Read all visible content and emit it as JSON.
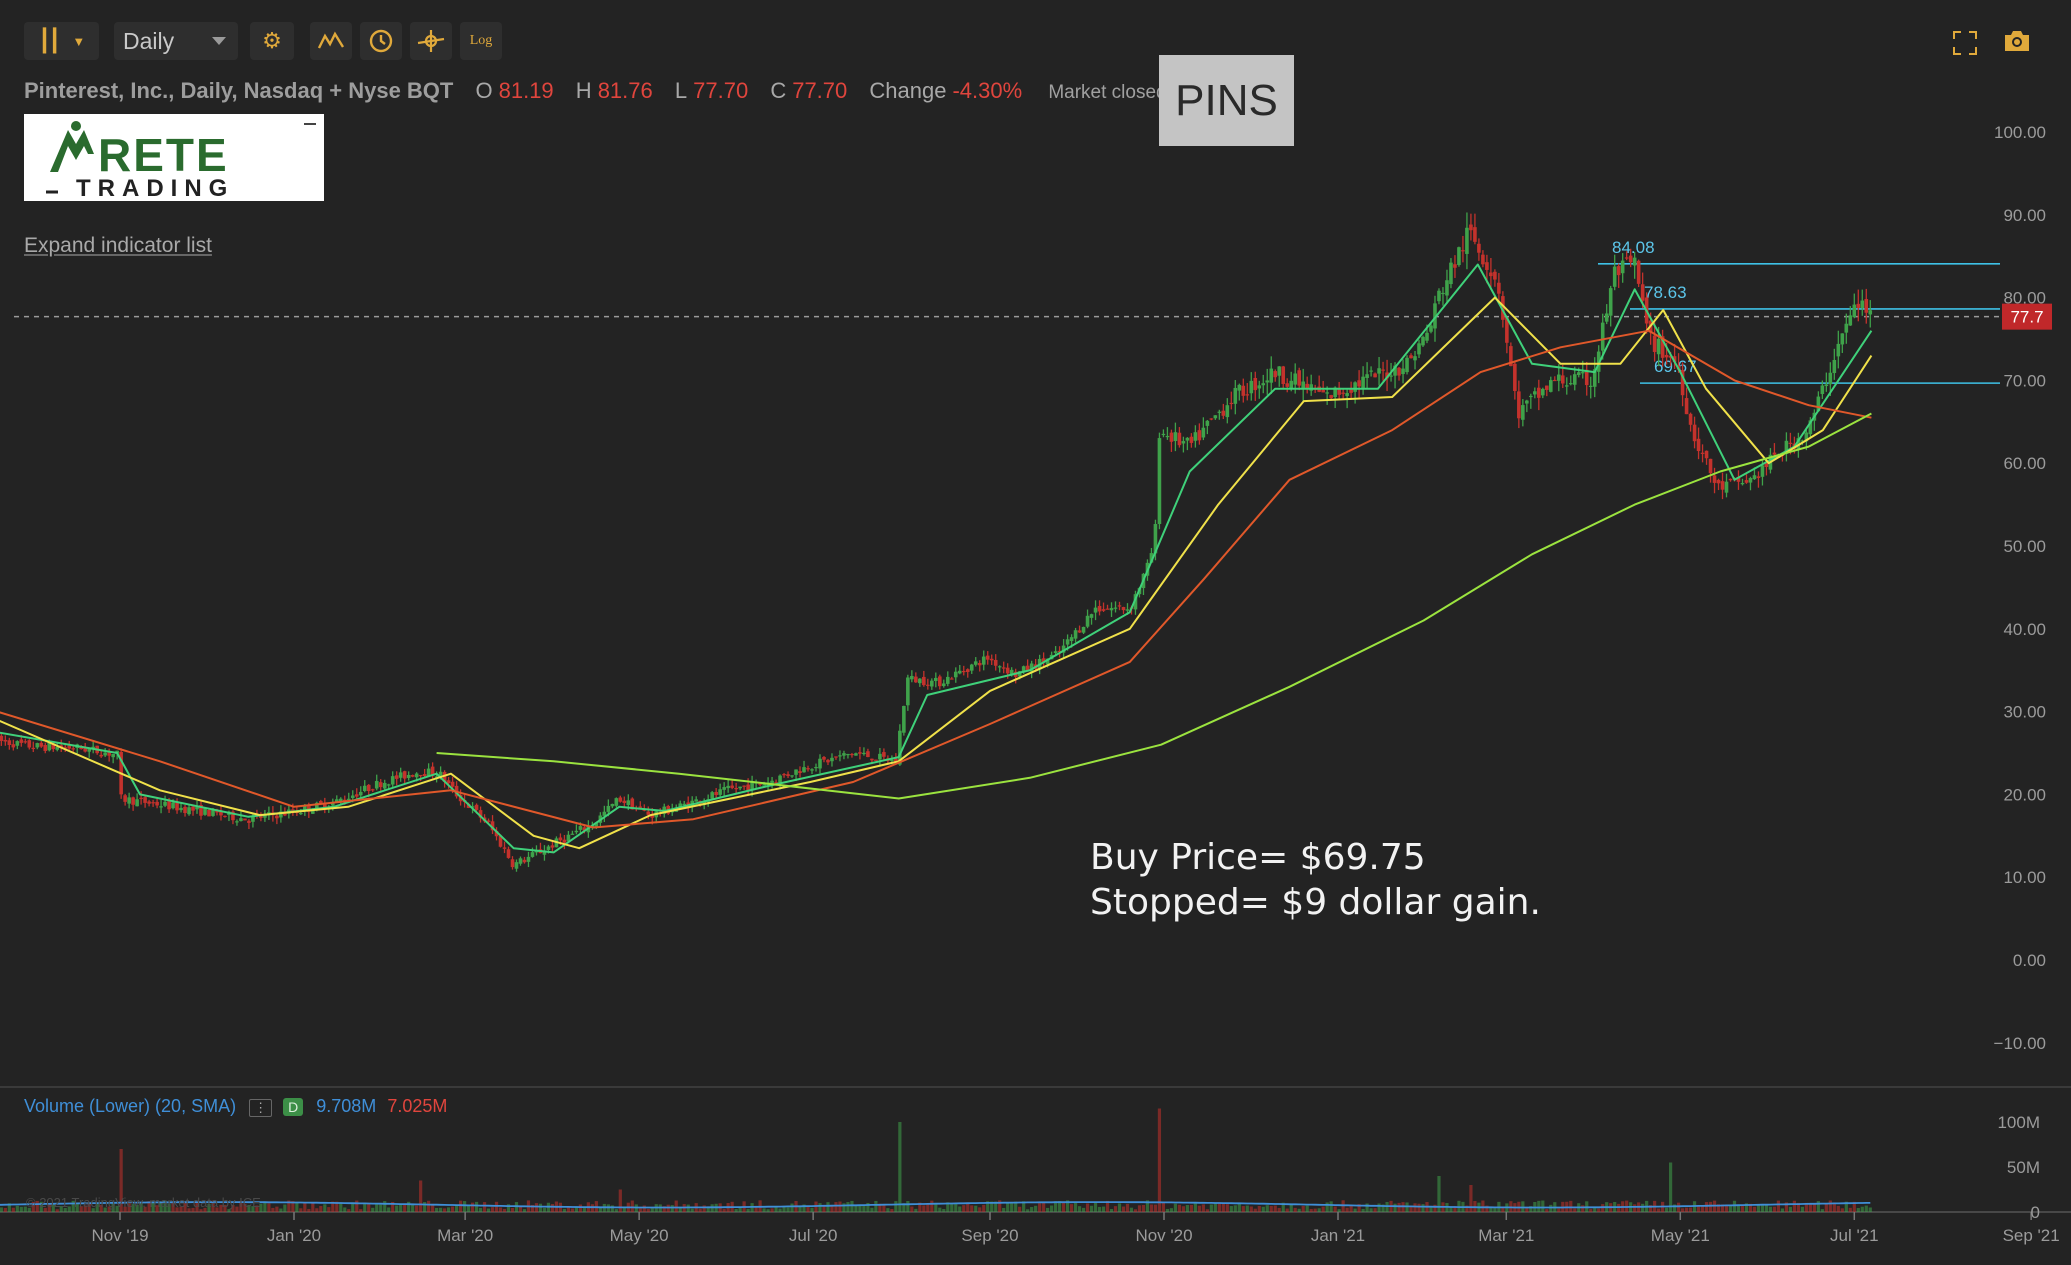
{
  "toolbar": {
    "interval": "Daily",
    "log_label": "Log"
  },
  "header": {
    "company": "Pinterest, Inc., Daily, Nasdaq + Nyse BQT",
    "open_label": "O",
    "open": "81.19",
    "high_label": "H",
    "high": "81.76",
    "low_label": "L",
    "low": "77.70",
    "close_label": "C",
    "close": "77.70",
    "change_label": "Change",
    "change": "-4.30%",
    "market_status": "Market closed"
  },
  "symbol": "PINS",
  "logo": {
    "line1": "RETE",
    "line2": "TRADING"
  },
  "expand_indicator": "Expand indicator list",
  "annotation": {
    "line1": "Buy Price= $69.75",
    "line2": "Stopped= $9 dollar gain."
  },
  "volume_legend": {
    "title": "Volume (Lower) (20, SMA)",
    "menu": "⋮",
    "badge": "D",
    "value_sma": "9.708M",
    "value_vol": "7.025M"
  },
  "copyright": "© 2021 TradingView, market data by ICE",
  "colors": {
    "background": "#232323",
    "up": "#3fa24a",
    "down": "#c4322c",
    "ma_fast": "#3fd17a",
    "ma_mid": "#f0e14a",
    "ma_slow": "#e0582a",
    "ma_long": "#9be33f",
    "level_line": "#3ec1e6",
    "vol_sma": "#3f8fd8",
    "price_tag": "#c0282a"
  },
  "chart_data": {
    "type": "candlestick",
    "title": "",
    "y_axis": {
      "ticks": [
        "100.00",
        "90.00",
        "80.00",
        "70.00",
        "60.00",
        "50.00",
        "40.00",
        "30.00",
        "20.00",
        "10.00",
        "0.00",
        "−10.00"
      ],
      "range": [
        -10,
        100
      ]
    },
    "x_axis": {
      "ticks": [
        "Nov '19",
        "Jan '20",
        "Mar '20",
        "May '20",
        "Jul '20",
        "Sep '20",
        "Nov '20",
        "Jan '21",
        "Mar '21",
        "May '21",
        "Jul '21",
        "Sep '21"
      ]
    },
    "last_price": 77.7,
    "last_price_label": "77.7",
    "levels": [
      {
        "value": 84.08,
        "label": "84.08"
      },
      {
        "value": 78.63,
        "label": "78.63"
      },
      {
        "value": 69.67,
        "label": "69.67"
      }
    ],
    "price_anchors": [
      [
        "2019-09-19",
        26.5
      ],
      [
        "2019-10-01",
        25.8
      ],
      [
        "2019-10-18",
        25.6
      ],
      [
        "2019-10-31",
        24.8
      ],
      [
        "2019-11-01",
        19.5
      ],
      [
        "2019-11-15",
        18.8
      ],
      [
        "2019-12-02",
        17.8
      ],
      [
        "2019-12-16",
        17.0
      ],
      [
        "2020-01-02",
        18.0
      ],
      [
        "2020-01-15",
        19.0
      ],
      [
        "2020-02-01",
        21.5
      ],
      [
        "2020-02-14",
        22.8
      ],
      [
        "2020-02-21",
        22.5
      ],
      [
        "2020-02-27",
        20.0
      ],
      [
        "2020-03-09",
        16.5
      ],
      [
        "2020-03-18",
        11.5
      ],
      [
        "2020-03-24",
        12.5
      ],
      [
        "2020-04-01",
        14.0
      ],
      [
        "2020-04-15",
        16.5
      ],
      [
        "2020-04-24",
        19.5
      ],
      [
        "2020-05-05",
        17.5
      ],
      [
        "2020-05-15",
        18.5
      ],
      [
        "2020-06-01",
        20.5
      ],
      [
        "2020-06-15",
        21.5
      ],
      [
        "2020-06-30",
        23.5
      ],
      [
        "2020-07-15",
        25.0
      ],
      [
        "2020-07-30",
        24.0
      ],
      [
        "2020-08-03",
        34.0
      ],
      [
        "2020-08-14",
        33.5
      ],
      [
        "2020-08-31",
        36.5
      ],
      [
        "2020-09-10",
        34.5
      ],
      [
        "2020-09-25",
        37.0
      ],
      [
        "2020-10-08",
        42.5
      ],
      [
        "2020-10-20",
        42.5
      ],
      [
        "2020-10-27",
        48.0
      ],
      [
        "2020-10-29",
        52.0
      ],
      [
        "2020-10-30",
        64.0
      ],
      [
        "2020-11-10",
        62.0
      ],
      [
        "2020-11-25",
        68.0
      ],
      [
        "2020-12-10",
        71.0
      ],
      [
        "2020-12-28",
        68.0
      ],
      [
        "2021-01-10",
        70.0
      ],
      [
        "2021-01-25",
        72.0
      ],
      [
        "2021-02-02",
        76.0
      ],
      [
        "2021-02-05",
        80.0
      ],
      [
        "2021-02-16",
        88.0
      ],
      [
        "2021-02-26",
        82.0
      ],
      [
        "2021-03-05",
        66.0
      ],
      [
        "2021-03-18",
        70.0
      ],
      [
        "2021-03-31",
        70.0
      ],
      [
        "2021-04-08",
        83.0
      ],
      [
        "2021-04-15",
        84.0
      ],
      [
        "2021-04-20",
        75.0
      ],
      [
        "2021-04-30",
        72.0
      ],
      [
        "2021-05-05",
        64.0
      ],
      [
        "2021-05-14",
        57.0
      ],
      [
        "2021-05-26",
        58.0
      ],
      [
        "2021-06-04",
        61.0
      ],
      [
        "2021-06-15",
        64.0
      ],
      [
        "2021-06-25",
        74.0
      ],
      [
        "2021-07-02",
        79.5
      ],
      [
        "2021-07-07",
        77.7
      ]
    ],
    "ma_anchors": {
      "fast": [
        [
          "2019-09-19",
          27.5
        ],
        [
          "2019-10-31",
          25.0
        ],
        [
          "2019-11-08",
          20.0
        ],
        [
          "2019-12-16",
          17.3
        ],
        [
          "2020-01-15",
          18.5
        ],
        [
          "2020-02-20",
          22.5
        ],
        [
          "2020-03-18",
          13.5
        ],
        [
          "2020-04-01",
          13.0
        ],
        [
          "2020-04-24",
          18.5
        ],
        [
          "2020-05-10",
          18.0
        ],
        [
          "2020-06-15",
          21.0
        ],
        [
          "2020-07-31",
          24.5
        ],
        [
          "2020-08-10",
          32.0
        ],
        [
          "2020-09-15",
          35.0
        ],
        [
          "2020-10-20",
          42.0
        ],
        [
          "2020-11-10",
          59.0
        ],
        [
          "2020-12-10",
          69.0
        ],
        [
          "2021-01-15",
          69.0
        ],
        [
          "2021-02-19",
          84.0
        ],
        [
          "2021-03-10",
          72.0
        ],
        [
          "2021-04-01",
          71.0
        ],
        [
          "2021-04-15",
          81.0
        ],
        [
          "2021-05-01",
          71.0
        ],
        [
          "2021-05-20",
          58.0
        ],
        [
          "2021-06-10",
          62.0
        ],
        [
          "2021-07-07",
          76.0
        ]
      ],
      "mid": [
        [
          "2019-09-19",
          29.0
        ],
        [
          "2019-11-15",
          20.5
        ],
        [
          "2019-12-20",
          17.5
        ],
        [
          "2020-01-20",
          18.5
        ],
        [
          "2020-02-25",
          22.5
        ],
        [
          "2020-03-25",
          15.0
        ],
        [
          "2020-04-10",
          13.5
        ],
        [
          "2020-05-05",
          17.5
        ],
        [
          "2020-06-30",
          21.5
        ],
        [
          "2020-07-31",
          24.0
        ],
        [
          "2020-09-01",
          32.5
        ],
        [
          "2020-10-20",
          40.0
        ],
        [
          "2020-11-20",
          55.0
        ],
        [
          "2020-12-20",
          67.5
        ],
        [
          "2021-01-20",
          68.0
        ],
        [
          "2021-02-25",
          80.0
        ],
        [
          "2021-03-20",
          72.0
        ],
        [
          "2021-04-10",
          72.0
        ],
        [
          "2021-04-25",
          78.5
        ],
        [
          "2021-05-10",
          69.0
        ],
        [
          "2021-06-01",
          60.0
        ],
        [
          "2021-06-20",
          64.0
        ],
        [
          "2021-07-07",
          73.0
        ]
      ],
      "slow": [
        [
          "2019-09-19",
          30.0
        ],
        [
          "2019-11-15",
          24.0
        ],
        [
          "2020-01-01",
          18.5
        ],
        [
          "2020-02-25",
          20.5
        ],
        [
          "2020-04-15",
          16.0
        ],
        [
          "2020-05-20",
          17.0
        ],
        [
          "2020-07-15",
          21.5
        ],
        [
          "2020-09-01",
          28.5
        ],
        [
          "2020-10-20",
          36.0
        ],
        [
          "2020-11-15",
          46.0
        ],
        [
          "2020-12-15",
          58.0
        ],
        [
          "2021-01-20",
          64.0
        ],
        [
          "2021-02-20",
          71.0
        ],
        [
          "2021-03-20",
          74.0
        ],
        [
          "2021-04-20",
          76.0
        ],
        [
          "2021-05-20",
          70.0
        ],
        [
          "2021-06-15",
          67.0
        ],
        [
          "2021-07-07",
          65.5
        ]
      ],
      "long": [
        [
          "2020-02-20",
          25.0
        ],
        [
          "2020-04-01",
          24.0
        ],
        [
          "2020-05-15",
          22.5
        ],
        [
          "2020-07-31",
          19.5
        ],
        [
          "2020-09-15",
          22.0
        ],
        [
          "2020-10-31",
          26.0
        ],
        [
          "2020-12-15",
          33.0
        ],
        [
          "2021-01-31",
          41.0
        ],
        [
          "2021-03-10",
          49.0
        ],
        [
          "2021-04-15",
          55.0
        ],
        [
          "2021-05-15",
          59.0
        ],
        [
          "2021-06-15",
          62.0
        ],
        [
          "2021-07-07",
          66.0
        ]
      ]
    },
    "volume_axis": {
      "ticks": [
        "100M",
        "50M",
        "0"
      ]
    },
    "volume_spikes": [
      [
        "2019-11-01",
        70
      ],
      [
        "2020-02-14",
        35
      ],
      [
        "2020-04-24",
        25
      ],
      [
        "2020-07-31",
        100
      ],
      [
        "2020-10-30",
        115
      ],
      [
        "2021-02-05",
        40
      ],
      [
        "2021-04-28",
        55
      ],
      [
        "2021-02-16",
        30
      ]
    ]
  }
}
